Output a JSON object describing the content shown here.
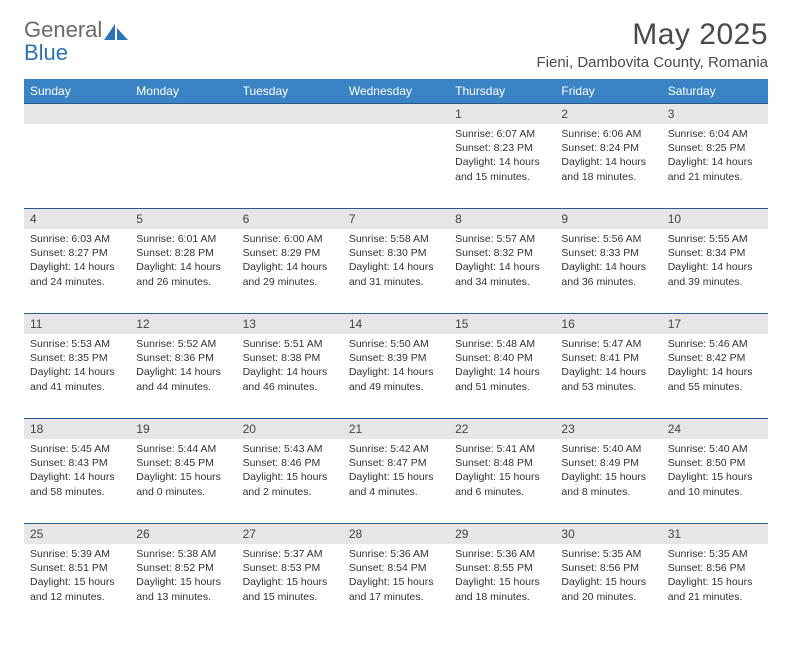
{
  "logo": {
    "word1": "General",
    "word2": "Blue"
  },
  "title": "May 2025",
  "location": "Fieni, Dambovita County, Romania",
  "colors": {
    "header_bg": "#3a83c4",
    "header_text": "#ffffff",
    "daynum_bg": "#e6e6e6",
    "rule": "#2a5a8a",
    "logo_gray": "#6a6a6a",
    "logo_blue": "#2d74b7",
    "text": "#333333"
  },
  "day_headers": [
    "Sunday",
    "Monday",
    "Tuesday",
    "Wednesday",
    "Thursday",
    "Friday",
    "Saturday"
  ],
  "weeks": [
    [
      {
        "day": "",
        "sunrise": "",
        "sunset": "",
        "daylight": ""
      },
      {
        "day": "",
        "sunrise": "",
        "sunset": "",
        "daylight": ""
      },
      {
        "day": "",
        "sunrise": "",
        "sunset": "",
        "daylight": ""
      },
      {
        "day": "",
        "sunrise": "",
        "sunset": "",
        "daylight": ""
      },
      {
        "day": "1",
        "sunrise": "Sunrise: 6:07 AM",
        "sunset": "Sunset: 8:23 PM",
        "daylight": "Daylight: 14 hours and 15 minutes."
      },
      {
        "day": "2",
        "sunrise": "Sunrise: 6:06 AM",
        "sunset": "Sunset: 8:24 PM",
        "daylight": "Daylight: 14 hours and 18 minutes."
      },
      {
        "day": "3",
        "sunrise": "Sunrise: 6:04 AM",
        "sunset": "Sunset: 8:25 PM",
        "daylight": "Daylight: 14 hours and 21 minutes."
      }
    ],
    [
      {
        "day": "4",
        "sunrise": "Sunrise: 6:03 AM",
        "sunset": "Sunset: 8:27 PM",
        "daylight": "Daylight: 14 hours and 24 minutes."
      },
      {
        "day": "5",
        "sunrise": "Sunrise: 6:01 AM",
        "sunset": "Sunset: 8:28 PM",
        "daylight": "Daylight: 14 hours and 26 minutes."
      },
      {
        "day": "6",
        "sunrise": "Sunrise: 6:00 AM",
        "sunset": "Sunset: 8:29 PM",
        "daylight": "Daylight: 14 hours and 29 minutes."
      },
      {
        "day": "7",
        "sunrise": "Sunrise: 5:58 AM",
        "sunset": "Sunset: 8:30 PM",
        "daylight": "Daylight: 14 hours and 31 minutes."
      },
      {
        "day": "8",
        "sunrise": "Sunrise: 5:57 AM",
        "sunset": "Sunset: 8:32 PM",
        "daylight": "Daylight: 14 hours and 34 minutes."
      },
      {
        "day": "9",
        "sunrise": "Sunrise: 5:56 AM",
        "sunset": "Sunset: 8:33 PM",
        "daylight": "Daylight: 14 hours and 36 minutes."
      },
      {
        "day": "10",
        "sunrise": "Sunrise: 5:55 AM",
        "sunset": "Sunset: 8:34 PM",
        "daylight": "Daylight: 14 hours and 39 minutes."
      }
    ],
    [
      {
        "day": "11",
        "sunrise": "Sunrise: 5:53 AM",
        "sunset": "Sunset: 8:35 PM",
        "daylight": "Daylight: 14 hours and 41 minutes."
      },
      {
        "day": "12",
        "sunrise": "Sunrise: 5:52 AM",
        "sunset": "Sunset: 8:36 PM",
        "daylight": "Daylight: 14 hours and 44 minutes."
      },
      {
        "day": "13",
        "sunrise": "Sunrise: 5:51 AM",
        "sunset": "Sunset: 8:38 PM",
        "daylight": "Daylight: 14 hours and 46 minutes."
      },
      {
        "day": "14",
        "sunrise": "Sunrise: 5:50 AM",
        "sunset": "Sunset: 8:39 PM",
        "daylight": "Daylight: 14 hours and 49 minutes."
      },
      {
        "day": "15",
        "sunrise": "Sunrise: 5:48 AM",
        "sunset": "Sunset: 8:40 PM",
        "daylight": "Daylight: 14 hours and 51 minutes."
      },
      {
        "day": "16",
        "sunrise": "Sunrise: 5:47 AM",
        "sunset": "Sunset: 8:41 PM",
        "daylight": "Daylight: 14 hours and 53 minutes."
      },
      {
        "day": "17",
        "sunrise": "Sunrise: 5:46 AM",
        "sunset": "Sunset: 8:42 PM",
        "daylight": "Daylight: 14 hours and 55 minutes."
      }
    ],
    [
      {
        "day": "18",
        "sunrise": "Sunrise: 5:45 AM",
        "sunset": "Sunset: 8:43 PM",
        "daylight": "Daylight: 14 hours and 58 minutes."
      },
      {
        "day": "19",
        "sunrise": "Sunrise: 5:44 AM",
        "sunset": "Sunset: 8:45 PM",
        "daylight": "Daylight: 15 hours and 0 minutes."
      },
      {
        "day": "20",
        "sunrise": "Sunrise: 5:43 AM",
        "sunset": "Sunset: 8:46 PM",
        "daylight": "Daylight: 15 hours and 2 minutes."
      },
      {
        "day": "21",
        "sunrise": "Sunrise: 5:42 AM",
        "sunset": "Sunset: 8:47 PM",
        "daylight": "Daylight: 15 hours and 4 minutes."
      },
      {
        "day": "22",
        "sunrise": "Sunrise: 5:41 AM",
        "sunset": "Sunset: 8:48 PM",
        "daylight": "Daylight: 15 hours and 6 minutes."
      },
      {
        "day": "23",
        "sunrise": "Sunrise: 5:40 AM",
        "sunset": "Sunset: 8:49 PM",
        "daylight": "Daylight: 15 hours and 8 minutes."
      },
      {
        "day": "24",
        "sunrise": "Sunrise: 5:40 AM",
        "sunset": "Sunset: 8:50 PM",
        "daylight": "Daylight: 15 hours and 10 minutes."
      }
    ],
    [
      {
        "day": "25",
        "sunrise": "Sunrise: 5:39 AM",
        "sunset": "Sunset: 8:51 PM",
        "daylight": "Daylight: 15 hours and 12 minutes."
      },
      {
        "day": "26",
        "sunrise": "Sunrise: 5:38 AM",
        "sunset": "Sunset: 8:52 PM",
        "daylight": "Daylight: 15 hours and 13 minutes."
      },
      {
        "day": "27",
        "sunrise": "Sunrise: 5:37 AM",
        "sunset": "Sunset: 8:53 PM",
        "daylight": "Daylight: 15 hours and 15 minutes."
      },
      {
        "day": "28",
        "sunrise": "Sunrise: 5:36 AM",
        "sunset": "Sunset: 8:54 PM",
        "daylight": "Daylight: 15 hours and 17 minutes."
      },
      {
        "day": "29",
        "sunrise": "Sunrise: 5:36 AM",
        "sunset": "Sunset: 8:55 PM",
        "daylight": "Daylight: 15 hours and 18 minutes."
      },
      {
        "day": "30",
        "sunrise": "Sunrise: 5:35 AM",
        "sunset": "Sunset: 8:56 PM",
        "daylight": "Daylight: 15 hours and 20 minutes."
      },
      {
        "day": "31",
        "sunrise": "Sunrise: 5:35 AM",
        "sunset": "Sunset: 8:56 PM",
        "daylight": "Daylight: 15 hours and 21 minutes."
      }
    ]
  ]
}
